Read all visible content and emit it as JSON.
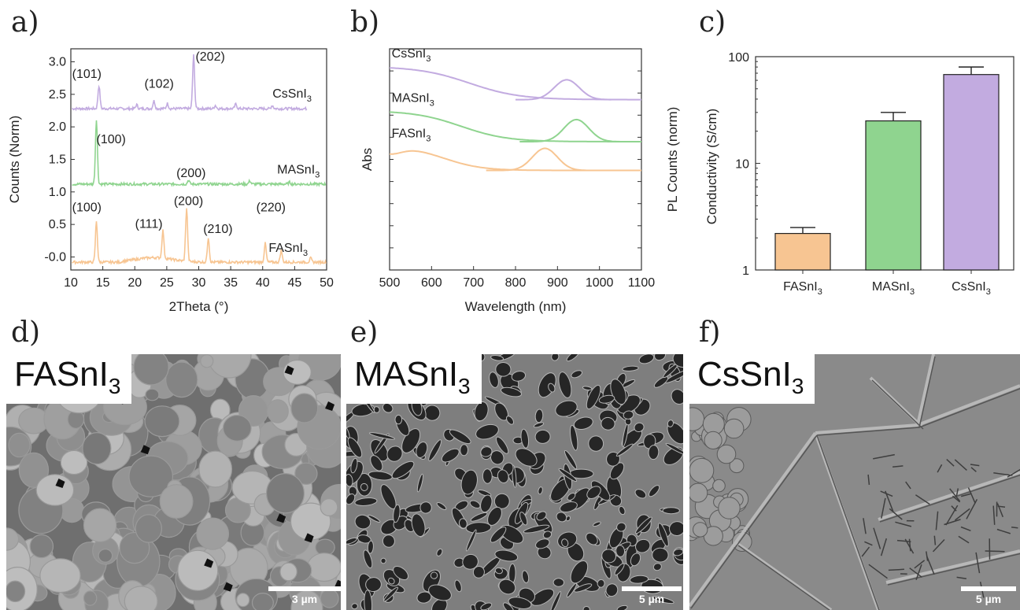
{
  "panels": {
    "a": "a)",
    "b": "b)",
    "c": "c)",
    "d": "d)",
    "e": "e)",
    "f": "f)"
  },
  "colors": {
    "FASnI3": "#f7c592",
    "MASnI3": "#8fd48f",
    "CsSnI3": "#c2abe0"
  },
  "chart_data": [
    {
      "type": "line",
      "xlabel": "2Theta (°)",
      "ylabel": "Counts (Norm)",
      "xlim": [
        10,
        50
      ],
      "ylim": [
        -0.2,
        3.2
      ],
      "xticks": [
        "10",
        "15",
        "20",
        "25",
        "30",
        "35",
        "40",
        "45",
        "50"
      ],
      "yticks": [
        "-0.0",
        "0.5",
        "1.0",
        "1.5",
        "2.0",
        "2.5",
        "3.0"
      ],
      "series": [
        {
          "name": "CsSnI3",
          "baseline": 2.28,
          "x_end": 47,
          "peaks": [
            [
              14.4,
              0.35
            ],
            [
              20.3,
              0.06
            ],
            [
              23.0,
              0.12
            ],
            [
              25.1,
              0.08
            ],
            [
              29.2,
              0.82
            ],
            [
              32.6,
              0.05
            ],
            [
              35.8,
              0.07
            ],
            [
              41.5,
              0.05
            ]
          ]
        },
        {
          "name": "MASnI3",
          "baseline": 1.12,
          "x_end": 50,
          "peaks": [
            [
              14.0,
              1.0
            ],
            [
              28.4,
              0.06
            ],
            [
              38.0,
              0.05
            ],
            [
              44.2,
              0.03
            ]
          ]
        },
        {
          "name": "FASnI3",
          "baseline": -0.08,
          "x_end": 50,
          "peaks": [
            [
              14.0,
              0.63
            ],
            [
              24.4,
              0.43
            ],
            [
              28.1,
              0.82
            ],
            [
              31.5,
              0.38
            ],
            [
              40.4,
              0.29
            ],
            [
              42.9,
              0.18
            ],
            [
              47.5,
              0.06
            ]
          ]
        }
      ],
      "annotations": [
        {
          "text": "(101)",
          "x": 12.5,
          "y": 2.75
        },
        {
          "text": "(102)",
          "x": 23.8,
          "y": 2.6
        },
        {
          "text": "(202)",
          "x": 31.8,
          "y": 3.02
        },
        {
          "text": "(100)",
          "x": 16.3,
          "y": 1.75
        },
        {
          "text": "(200)",
          "x": 28.8,
          "y": 1.23
        },
        {
          "text": "(100)",
          "x": 12.5,
          "y": 0.7
        },
        {
          "text": "(111)",
          "x": 22.2,
          "y": 0.45
        },
        {
          "text": "(200)",
          "x": 28.4,
          "y": 0.8
        },
        {
          "text": "(210)",
          "x": 33.0,
          "y": 0.37
        },
        {
          "text": "(220)",
          "x": 41.3,
          "y": 0.7
        }
      ],
      "series_labels": [
        {
          "base": "CsSnI",
          "sub": "3",
          "x": 44.6,
          "y": 2.45
        },
        {
          "base": "MASnI",
          "sub": "3",
          "x": 45.6,
          "y": 1.28
        },
        {
          "base": "FASnI",
          "sub": "3",
          "x": 44.0,
          "y": 0.08
        }
      ]
    },
    {
      "type": "line",
      "xlabel": "Wavelength (nm)",
      "ylabel_left": "Abs",
      "ylabel_right": "PL Counts (norm)",
      "xlim": [
        500,
        1100
      ],
      "xticks": [
        "500",
        "600",
        "700",
        "800",
        "900",
        "1000",
        "1100"
      ],
      "series": [
        {
          "name": "CsSnI3",
          "abs_high": 0.92,
          "abs_low": 0.77,
          "abs_mid": 690,
          "abs_width": 60,
          "pl_center": 922,
          "pl_height": 0.09,
          "pl_start": 800,
          "pl_end": 1030
        },
        {
          "name": "MASnI3",
          "abs_high": 0.72,
          "abs_low": 0.58,
          "abs_mid": 670,
          "abs_width": 55,
          "pl_center": 945,
          "pl_height": 0.1,
          "pl_start": 810,
          "pl_end": 1080
        },
        {
          "name": "FASnI3",
          "abs_high": 0.56,
          "abs_low": 0.45,
          "abs_mid": 630,
          "abs_width": 45,
          "abs_rise": true,
          "pl_center": 870,
          "pl_height": 0.1,
          "pl_start": 730,
          "pl_end": 1100
        }
      ],
      "series_labels": [
        {
          "base": "CsSnI",
          "sub": "3",
          "x": 505,
          "y": 0.96
        },
        {
          "base": "MASnI",
          "sub": "3",
          "x": 505,
          "y": 0.76
        },
        {
          "base": "FASnI",
          "sub": "3",
          "x": 505,
          "y": 0.6
        }
      ]
    },
    {
      "type": "bar",
      "ylabel": "Conductivity (S/cm)",
      "yscale": "log",
      "ylim": [
        1,
        100
      ],
      "yticks": [
        "1",
        "10",
        "100"
      ],
      "categories": [
        {
          "base": "FASnI",
          "sub": "3"
        },
        {
          "base": "MASnI",
          "sub": "3"
        },
        {
          "base": "CsSnI",
          "sub": "3"
        }
      ],
      "values": [
        2.2,
        25,
        68
      ],
      "errors": [
        0.3,
        5,
        12
      ]
    }
  ],
  "images": [
    {
      "label_base": "FASnI",
      "label_sub": "3",
      "scale": "3 µm",
      "texture": "grains"
    },
    {
      "label_base": "MASnI",
      "label_sub": "3",
      "scale": "5 µm",
      "texture": "pores"
    },
    {
      "label_base": "CsSnI",
      "label_sub": "3",
      "scale": "5 µm",
      "texture": "dendrites"
    }
  ]
}
